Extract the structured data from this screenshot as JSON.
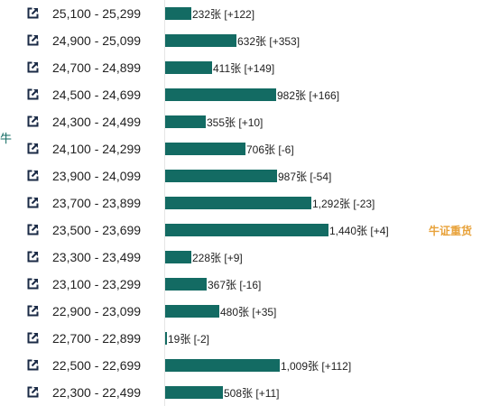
{
  "side_label": "牛",
  "note": {
    "label": "牛证重货",
    "row_index": 8
  },
  "colors": {
    "bar": "#136b63",
    "note": "#e8a23a",
    "icon": "#1a2a45"
  },
  "icon_name": "external-link-icon",
  "chart_data": {
    "type": "bar",
    "orientation": "horizontal",
    "title": "",
    "xlabel": "",
    "ylabel": "",
    "unit": "张",
    "xlim": [
      0,
      1440
    ],
    "categories": [
      "25,100 - 25,299",
      "24,900 - 25,099",
      "24,700 - 24,899",
      "24,500 - 24,699",
      "24,300 - 24,499",
      "24,100 - 24,299",
      "23,900 - 24,099",
      "23,700 - 23,899",
      "23,500 - 23,699",
      "23,300 - 23,499",
      "23,100 - 23,299",
      "22,900 - 23,099",
      "22,700 - 22,899",
      "22,500 - 22,699",
      "22,300 - 22,499"
    ],
    "values": [
      232,
      632,
      411,
      982,
      355,
      706,
      987,
      1292,
      1440,
      228,
      367,
      480,
      19,
      1009,
      508
    ],
    "changes": [
      "+122",
      "+353",
      "+149",
      "+166",
      "+10",
      "-6",
      "-54",
      "-23",
      "+4",
      "+9",
      "-16",
      "+35",
      "-2",
      "+112",
      "+11"
    ],
    "labels": [
      "232张 [+122]",
      "632张 [+353]",
      "411张 [+149]",
      "982张 [+166]",
      "355张 [+10]",
      "706张 [-6]",
      "987张 [-54]",
      "1,292张 [-23]",
      "1,440张 [+4]",
      "228张 [+9]",
      "367张 [-16]",
      "480张 [+35]",
      "19张 [-2]",
      "1,009张 [+112]",
      "508张 [+11]"
    ]
  }
}
